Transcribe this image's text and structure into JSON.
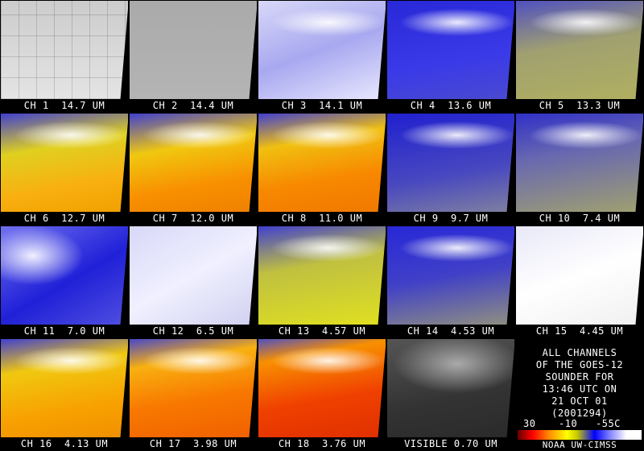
{
  "panels": [
    {
      "label": "CH 1  14.7 UM"
    },
    {
      "label": "CH 2  14.4 UM"
    },
    {
      "label": "CH 3  14.1 UM"
    },
    {
      "label": "CH 4  13.6 UM"
    },
    {
      "label": "CH 5  13.3 UM"
    },
    {
      "label": "CH 6  12.7 UM"
    },
    {
      "label": "CH 7  12.0 UM"
    },
    {
      "label": "CH 8  11.0 UM"
    },
    {
      "label": "CH 9  9.7 UM"
    },
    {
      "label": "CH 10  7.4 UM"
    },
    {
      "label": "CH 11  7.0 UM"
    },
    {
      "label": "CH 12  6.5 UM"
    },
    {
      "label": "CH 13  4.57 UM"
    },
    {
      "label": "CH 14  4.53 UM"
    },
    {
      "label": "CH 15  4.45 UM"
    },
    {
      "label": "CH 16  4.13 UM"
    },
    {
      "label": "CH 17  3.98 UM"
    },
    {
      "label": "CH 18  3.76 UM"
    },
    {
      "label": "VISIBLE 0.70 UM"
    }
  ],
  "info": {
    "lines": [
      "ALL CHANNELS",
      "OF THE GOES-12",
      "SOUNDER FOR",
      "13:46 UTC ON",
      "21 OCT 01",
      "(2001294)"
    ],
    "scale_labels": [
      "30",
      "-10",
      "-55C"
    ],
    "credit": "NOAA UW-CIMSS"
  }
}
